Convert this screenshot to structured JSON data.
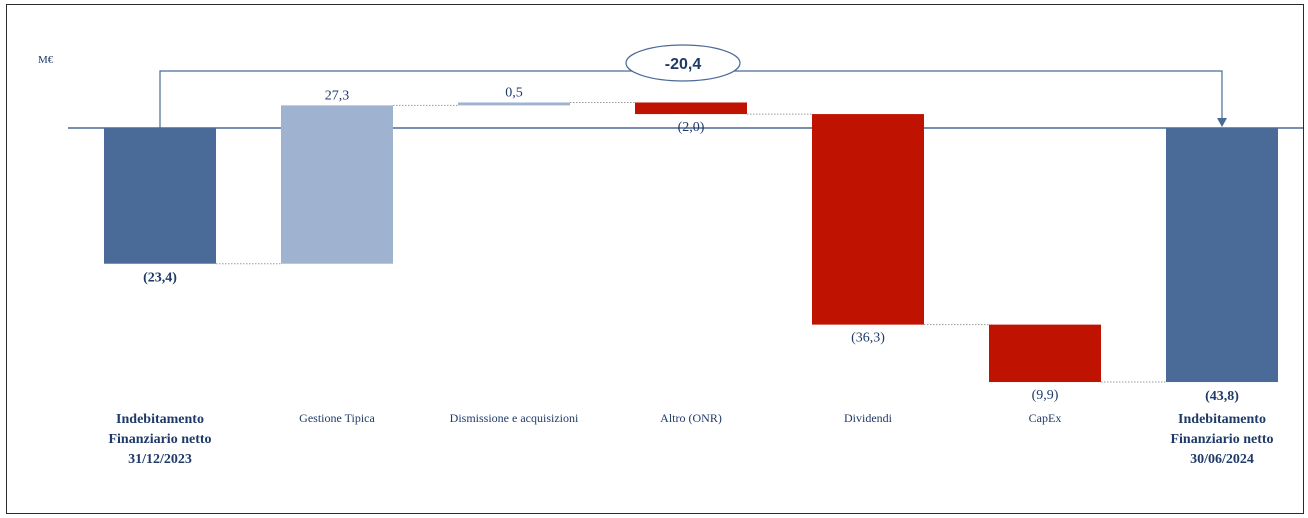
{
  "chart_data": {
    "type": "waterfall",
    "unit": "M€",
    "categories": [
      [
        "Indebitamento",
        "Finanziario netto",
        "31/12/2023"
      ],
      [
        "Gestione Tipica"
      ],
      [
        "Dismissione e acquisizioni"
      ],
      [
        "Altro (ONR)"
      ],
      [
        "Dividendi"
      ],
      [
        "CapEx"
      ],
      [
        "Indebitamento",
        "Finanziario netto",
        "30/06/2024"
      ]
    ],
    "kinds": [
      "total",
      "increase",
      "increase",
      "decrease",
      "decrease",
      "decrease",
      "total"
    ],
    "values": [
      -23.4,
      27.3,
      0.5,
      -2.0,
      -36.3,
      -9.9,
      -43.8
    ],
    "value_labels": [
      "(23,4)",
      "27,3",
      "0,5",
      "(2,0)",
      "(36,3)",
      "(9,9)",
      "(43,8)"
    ],
    "total_change_label": "-20,4",
    "colors": {
      "total": "#4a6a98",
      "increase": "#9fb2cf",
      "decrease": "#c01200",
      "axis": "#4a6a98",
      "connector": "#9a9a9a",
      "text": "#1f3a68"
    }
  }
}
